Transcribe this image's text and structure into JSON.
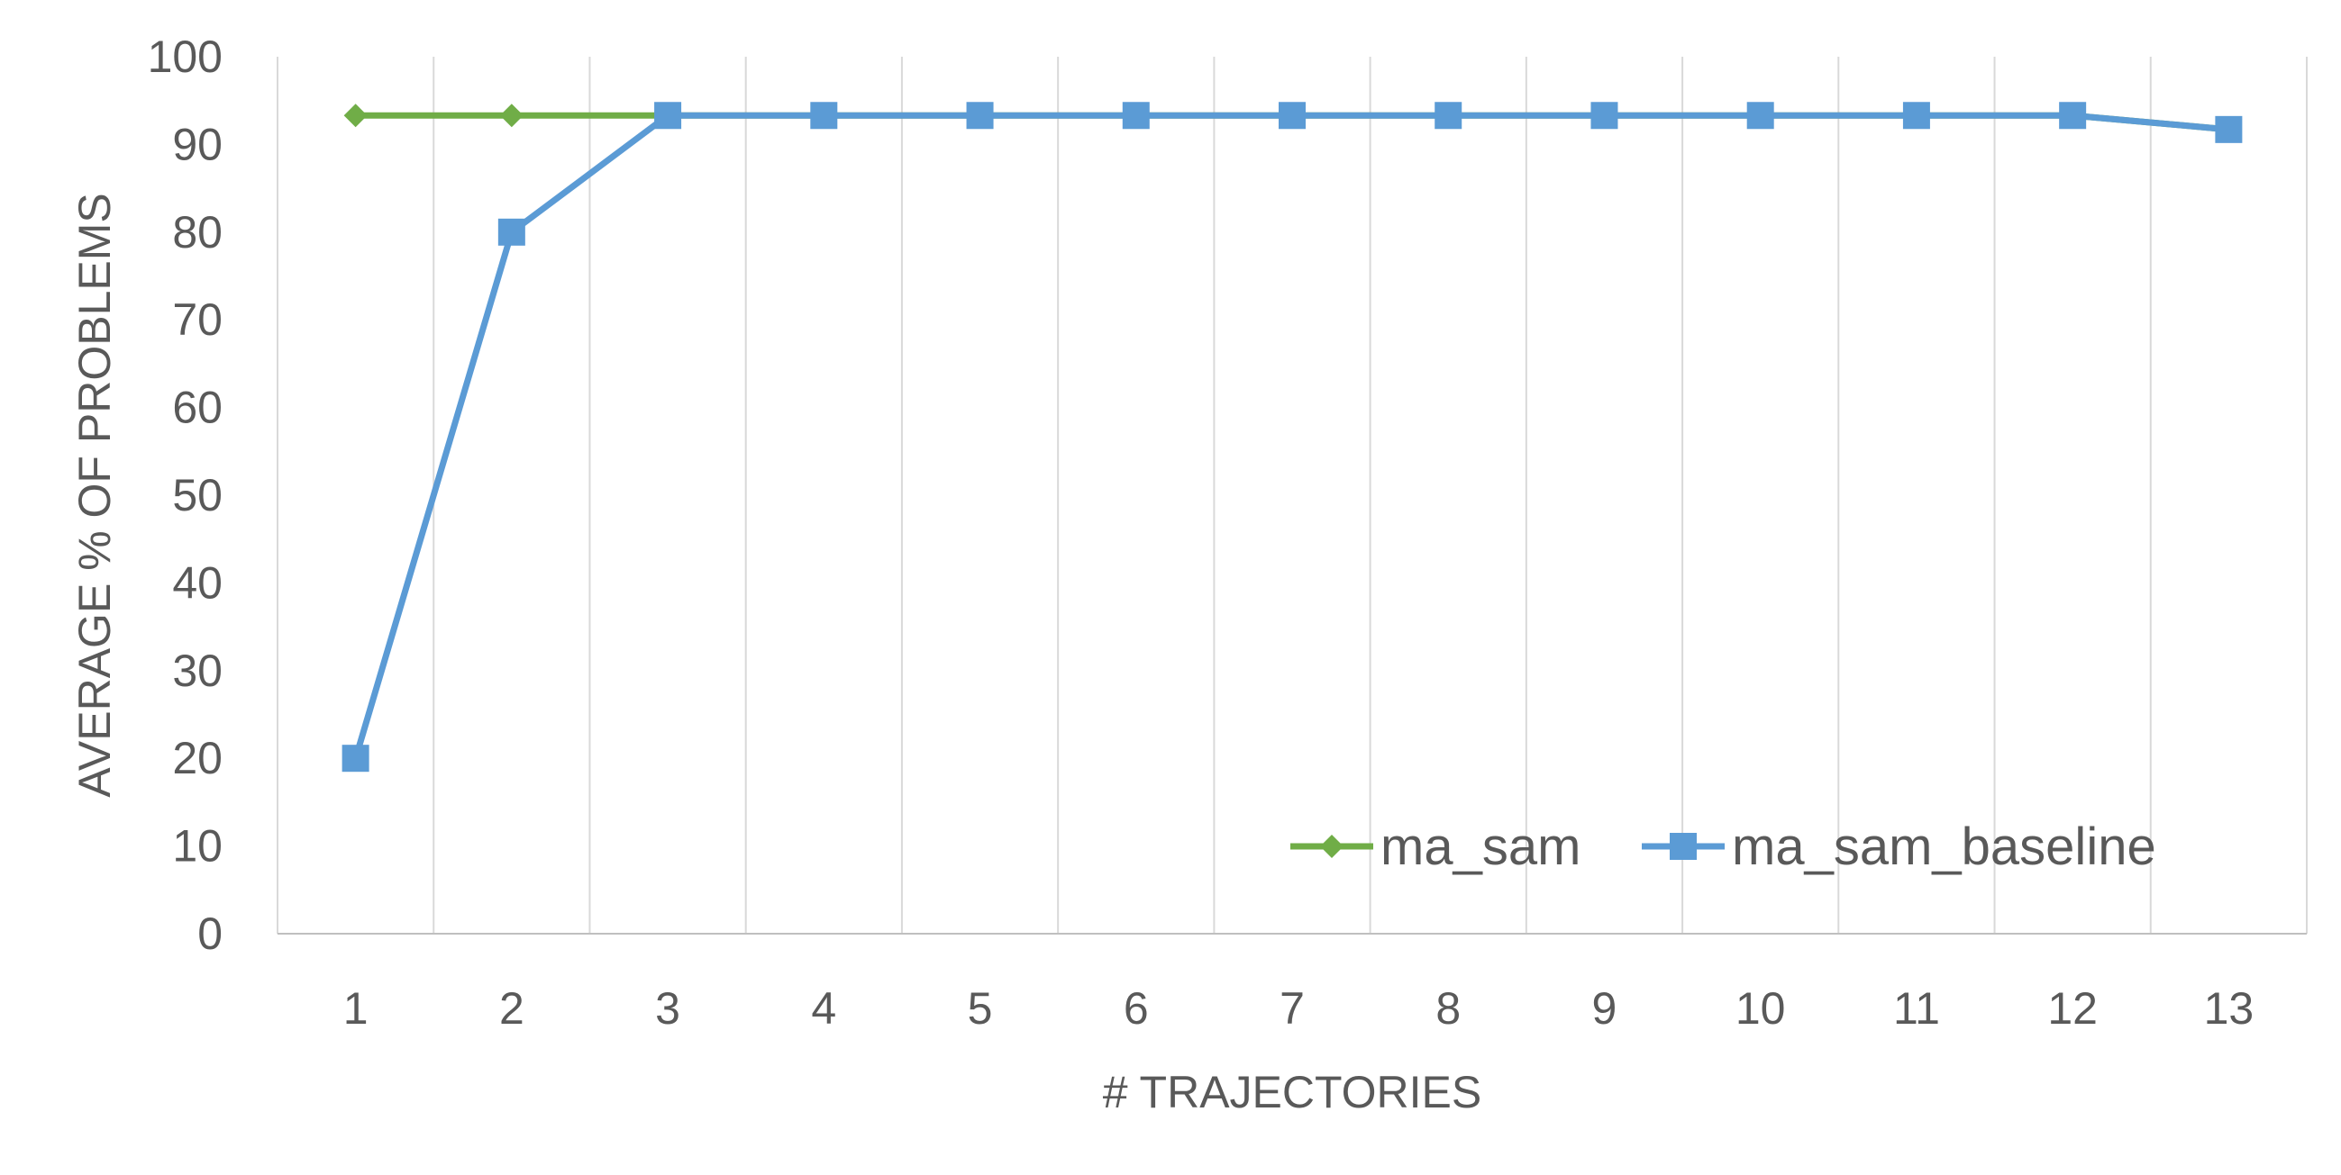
{
  "chart_data": {
    "type": "line",
    "title": "",
    "xlabel": "# TRAJECTORIES",
    "ylabel": "AVERAGE % OF PROBLEMS",
    "categories": [
      "1",
      "2",
      "3",
      "4",
      "5",
      "6",
      "7",
      "8",
      "9",
      "10",
      "11",
      "12",
      "13"
    ],
    "ylim": [
      0,
      100
    ],
    "yticks": [
      "0",
      "10",
      "20",
      "30",
      "40",
      "50",
      "60",
      "70",
      "80",
      "90",
      "100"
    ],
    "grid": "vertical",
    "legend_position": "bottom-right",
    "series": [
      {
        "name": "ma_sam",
        "color": "#70ad47",
        "marker": "diamond",
        "values": [
          93.3,
          93.3,
          93.3,
          93.3,
          93.3,
          93.3,
          93.3,
          93.3,
          93.3,
          93.3,
          93.3,
          93.3,
          91.7
        ]
      },
      {
        "name": "ma_sam_baseline",
        "color": "#5b9bd5",
        "marker": "square",
        "values": [
          20,
          80,
          93.3,
          93.3,
          93.3,
          93.3,
          93.3,
          93.3,
          93.3,
          93.3,
          93.3,
          93.3,
          91.7
        ]
      }
    ]
  }
}
